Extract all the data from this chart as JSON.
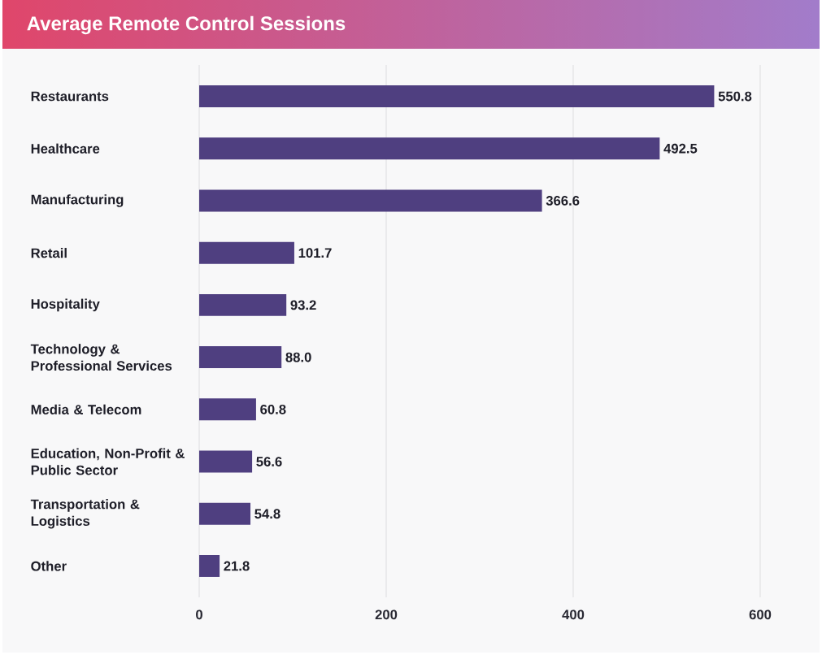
{
  "chart_data": {
    "type": "bar",
    "orientation": "horizontal",
    "title": "Average Remote Control Sessions",
    "categories": [
      "Restaurants",
      "Healthcare",
      "Manufacturing",
      "Retail",
      "Hospitality",
      "Technology & Professional Services",
      "Media & Telecom",
      "Education, Non-Profit & Public Sector",
      "Transportation & Logistics",
      "Other"
    ],
    "values": [
      550.8,
      492.5,
      366.6,
      101.7,
      93.2,
      88.0,
      60.8,
      56.6,
      54.8,
      21.8
    ],
    "value_labels": [
      "550.8",
      "492.5",
      "366.6",
      "101.7",
      "93.2",
      "88.0",
      "60.8",
      "56.6",
      "54.8",
      "21.8"
    ],
    "color": "#4f3f80",
    "xlim": [
      0,
      600
    ],
    "xticks": [
      0,
      200,
      400,
      600
    ],
    "grid": "x"
  }
}
